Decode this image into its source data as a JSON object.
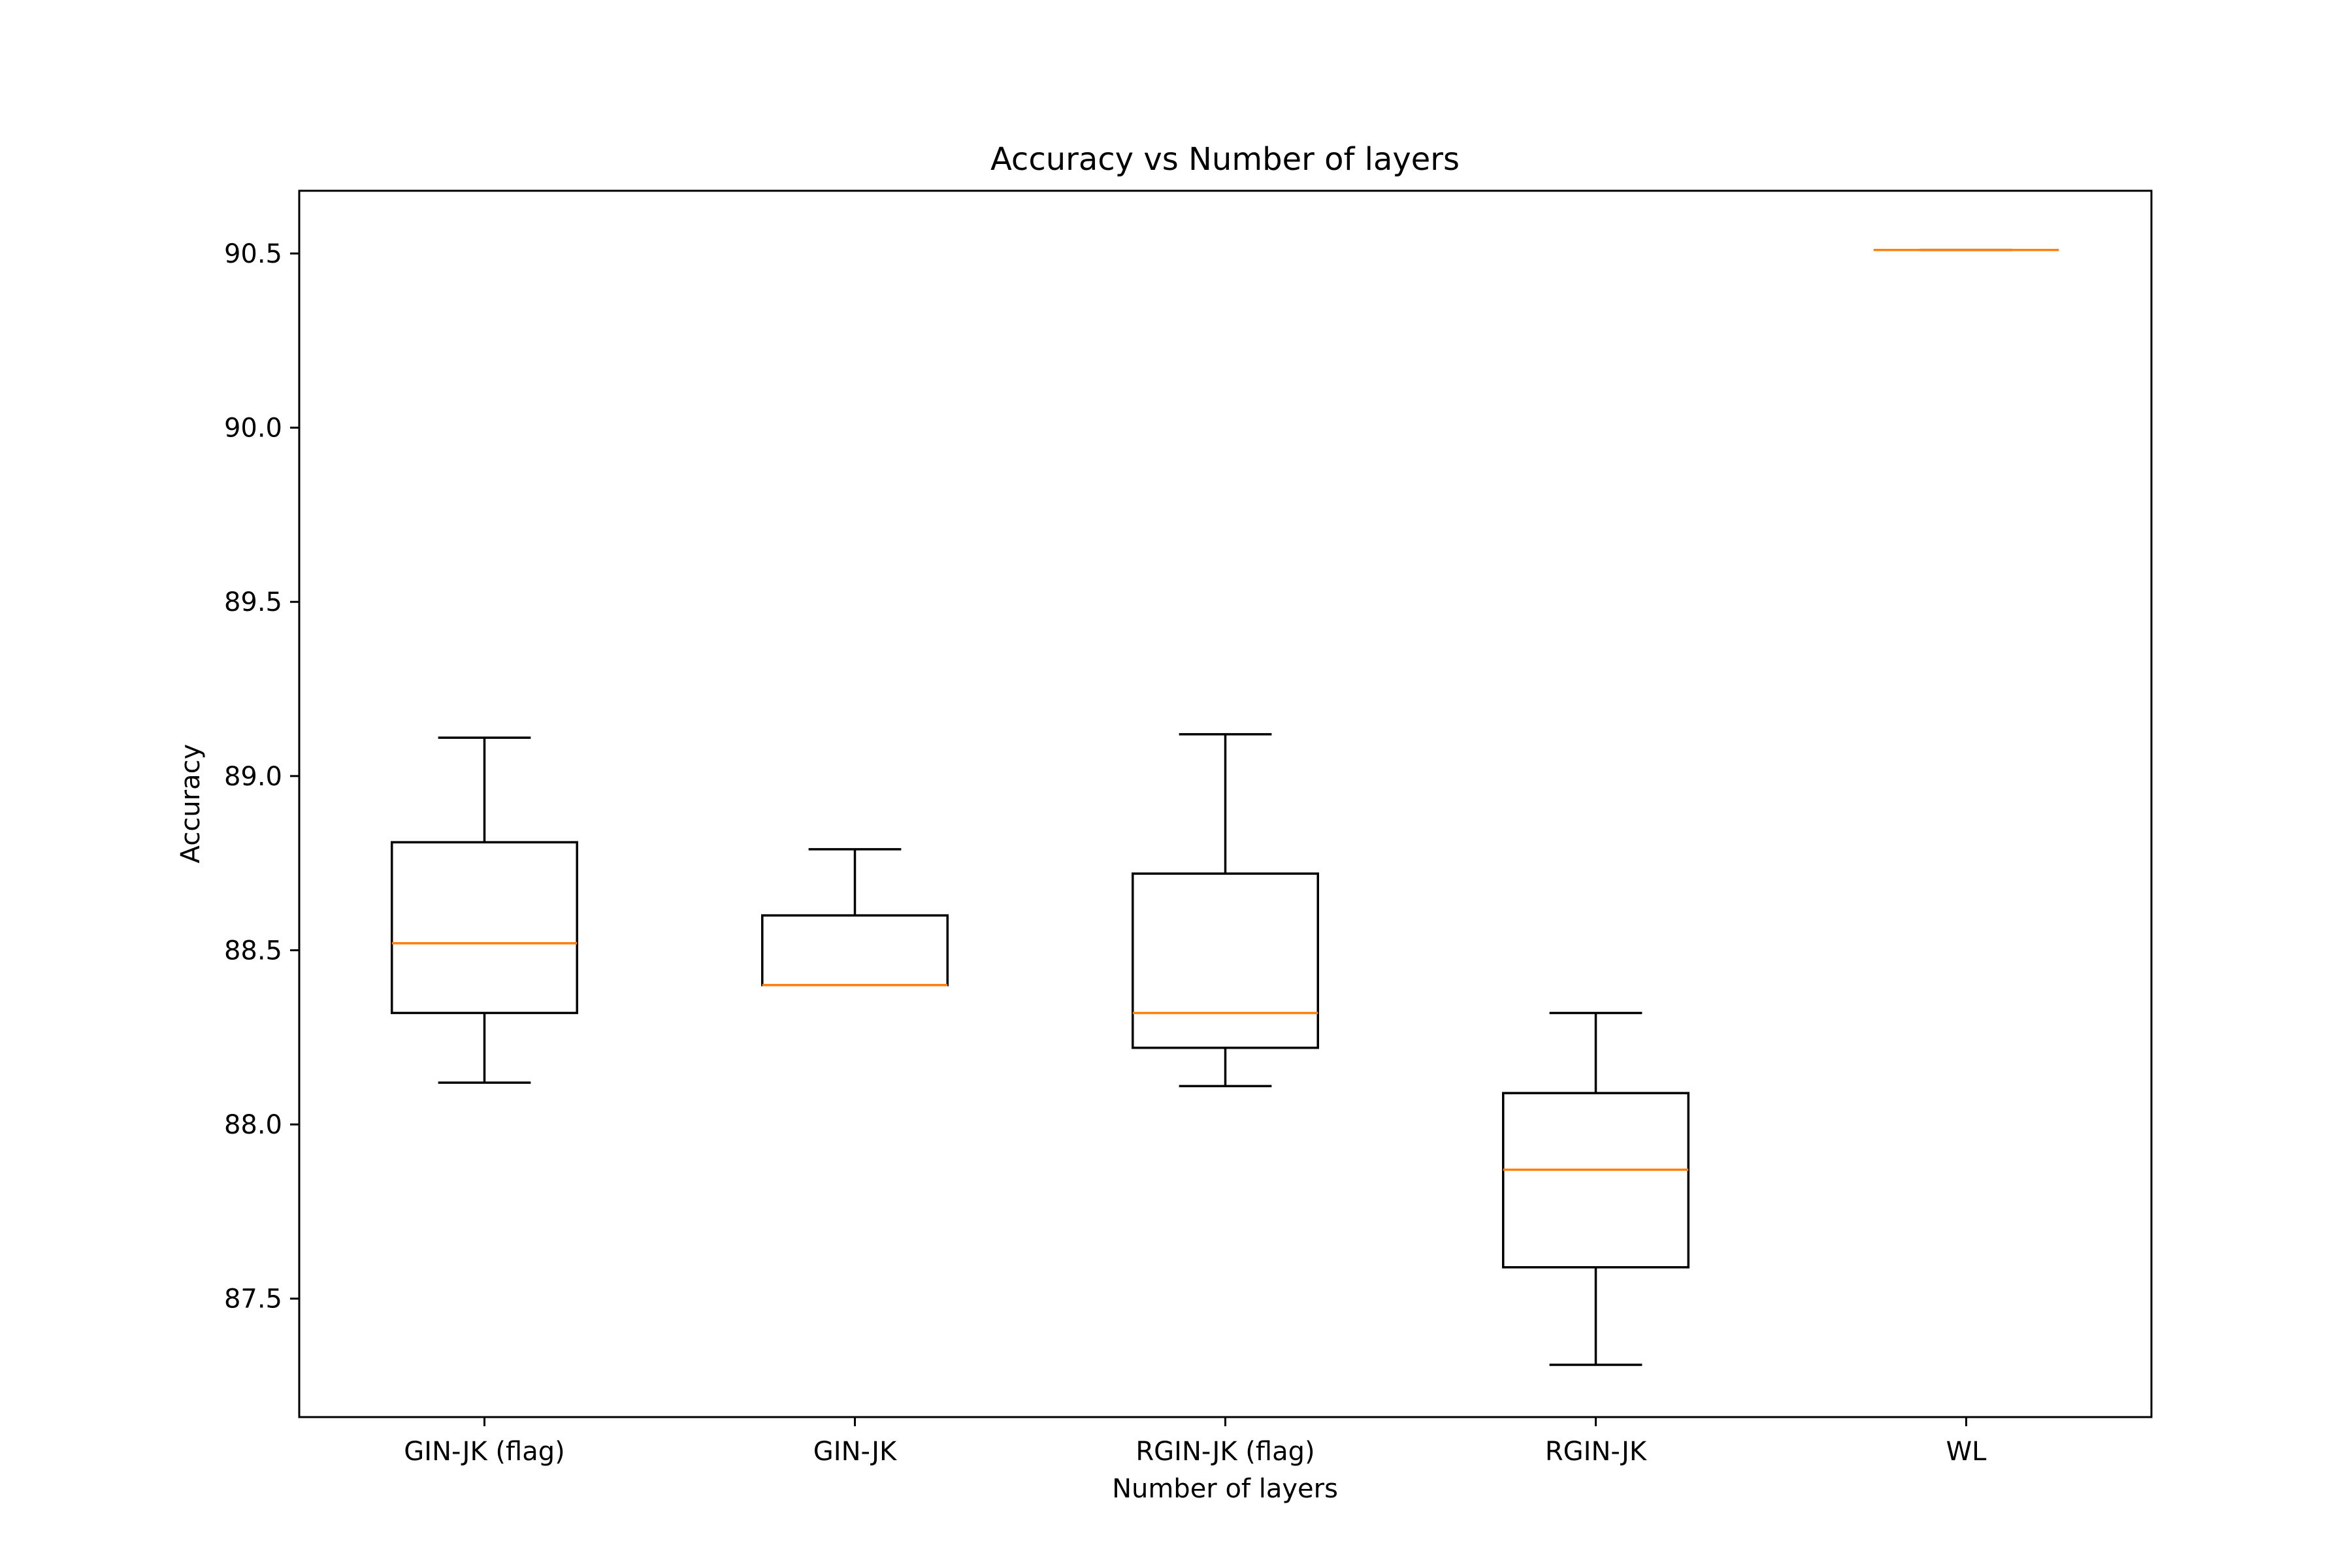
{
  "chart_data": {
    "type": "box",
    "title": "Accuracy vs Number of layers",
    "xlabel": "Number of layers",
    "ylabel": "Accuracy",
    "ylim": [
      87.16,
      90.68
    ],
    "yticks": [
      "87.5",
      "88.0",
      "88.5",
      "89.0",
      "89.5",
      "90.0",
      "90.5"
    ],
    "grid": false,
    "categories": [
      "GIN-JK (flag)",
      "GIN-JK",
      "RGIN-JK (flag)",
      "RGIN-JK",
      "WL"
    ],
    "boxes": [
      {
        "label": "GIN-JK (flag)",
        "whisker_low": 88.12,
        "q1": 88.32,
        "median": 88.52,
        "q3": 88.81,
        "whisker_high": 89.11
      },
      {
        "label": "GIN-JK",
        "whisker_low": 88.4,
        "q1": 88.4,
        "median": 88.4,
        "q3": 88.6,
        "whisker_high": 88.79
      },
      {
        "label": "RGIN-JK (flag)",
        "whisker_low": 88.11,
        "q1": 88.22,
        "median": 88.32,
        "q3": 88.72,
        "whisker_high": 89.12
      },
      {
        "label": "RGIN-JK",
        "whisker_low": 87.31,
        "q1": 87.59,
        "median": 87.87,
        "q3": 88.09,
        "whisker_high": 88.32
      },
      {
        "label": "WL",
        "whisker_low": 90.51,
        "q1": 90.51,
        "median": 90.51,
        "q3": 90.51,
        "whisker_high": 90.51
      }
    ],
    "colors": {
      "box": "#000000",
      "median": "#ff7f0e"
    }
  }
}
